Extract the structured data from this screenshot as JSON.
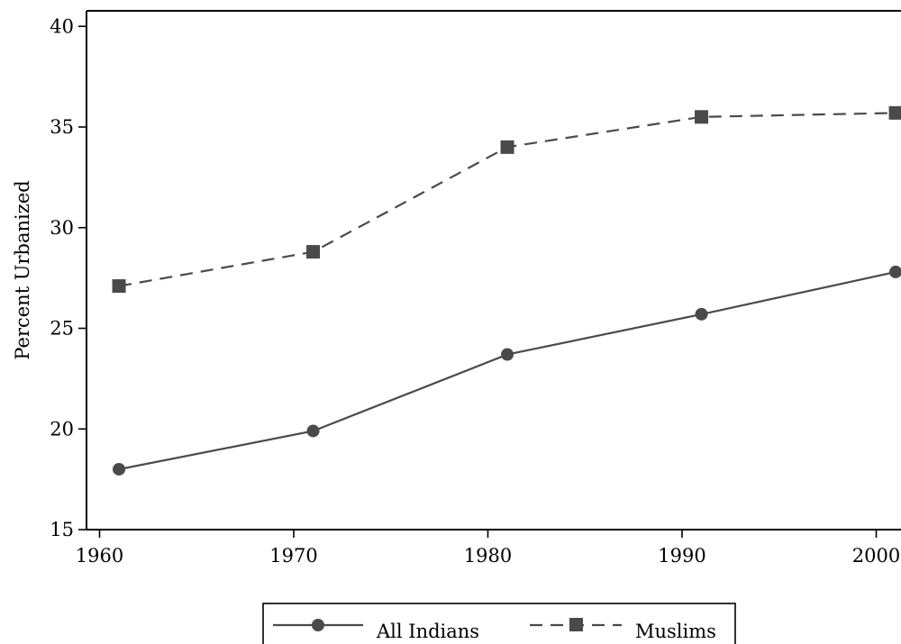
{
  "chart_data": {
    "type": "line",
    "title": "",
    "xlabel": "",
    "ylabel": "Percent Urbanized",
    "x": [
      1961,
      1971,
      1981,
      1991,
      2001
    ],
    "xlim": [
      1960,
      2001
    ],
    "ylim": [
      15,
      40
    ],
    "xticks": [
      1960,
      1970,
      1980,
      1990,
      2000
    ],
    "yticks": [
      15,
      20,
      25,
      30,
      35,
      40
    ],
    "xtick_labels": [
      "1960",
      "1970",
      "1980",
      "1990",
      "2000"
    ],
    "ytick_labels": [
      "15",
      "20",
      "25",
      "30",
      "35",
      "40"
    ],
    "grid": false,
    "legend_position": "bottom-center",
    "series": [
      {
        "name": "All Indians",
        "values": [
          18.0,
          19.9,
          23.7,
          25.7,
          27.8
        ],
        "line_style": "solid",
        "marker": "circle",
        "color": "#4a4a4a"
      },
      {
        "name": "Muslims",
        "values": [
          27.1,
          28.8,
          34.0,
          35.5,
          35.7
        ],
        "line_style": "dashed",
        "marker": "square",
        "color": "#4a4a4a"
      }
    ]
  }
}
